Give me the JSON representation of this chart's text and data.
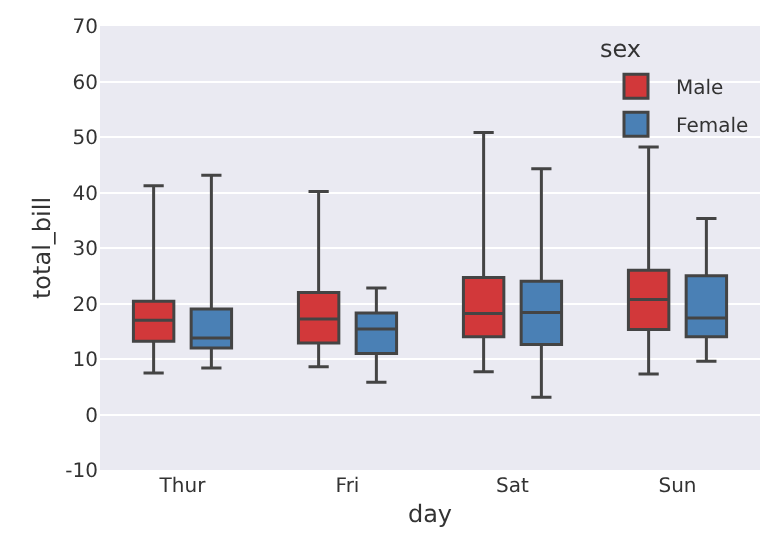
{
  "chart_data": {
    "type": "box",
    "xlabel": "day",
    "ylabel": "total_bill",
    "legend_title": "sex",
    "legend": "top right",
    "grid": "y",
    "categories": [
      "Thur",
      "Fri",
      "Sat",
      "Sun"
    ],
    "ylim": [
      -10,
      70
    ],
    "yticks": [
      -10,
      0,
      10,
      20,
      30,
      40,
      50,
      60,
      70
    ],
    "series": [
      {
        "name": "Male",
        "color": "#d2383a",
        "boxes": [
          {
            "low": 7.5,
            "q1": 13.2,
            "median": 17,
            "q3": 20.4,
            "high": 41.2
          },
          {
            "low": 8.6,
            "q1": 12.9,
            "median": 17.2,
            "q3": 22,
            "high": 40.2
          },
          {
            "low": 7.7,
            "q1": 14,
            "median": 18.2,
            "q3": 24.7,
            "high": 50.8
          },
          {
            "low": 7.3,
            "q1": 15.3,
            "median": 20.7,
            "q3": 26,
            "high": 48.2
          }
        ]
      },
      {
        "name": "Female",
        "color": "#4a80b5",
        "boxes": [
          {
            "low": 8.4,
            "q1": 12,
            "median": 13.8,
            "q3": 19,
            "high": 43.1
          },
          {
            "low": 5.8,
            "q1": 11,
            "median": 15.4,
            "q3": 18.3,
            "high": 22.8
          },
          {
            "low": 3.1,
            "q1": 12.6,
            "median": 18.4,
            "q3": 24,
            "high": 44.3
          },
          {
            "low": 9.6,
            "q1": 14,
            "median": 17.4,
            "q3": 25,
            "high": 35.3
          }
        ]
      }
    ]
  }
}
